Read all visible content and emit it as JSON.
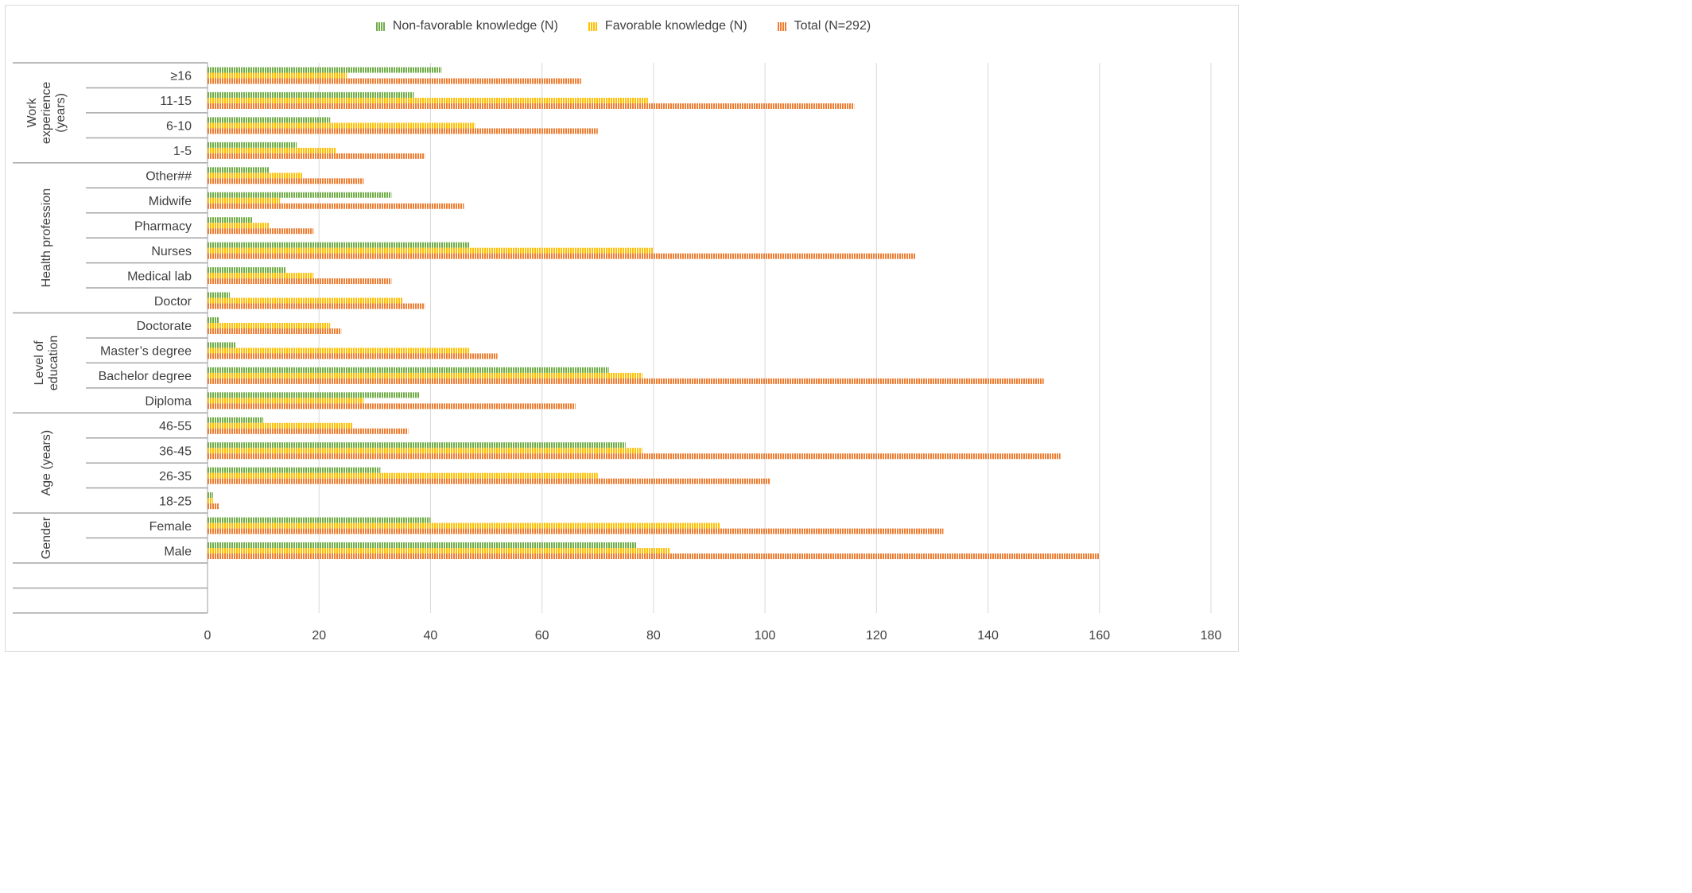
{
  "chart_data": {
    "type": "bar",
    "orientation": "horizontal",
    "series": [
      {
        "name": "Non-favorable knowledge (N)",
        "color": "#70ad47",
        "values": [
          42,
          37,
          22,
          16,
          11,
          33,
          8,
          47,
          14,
          4,
          2,
          5,
          72,
          38,
          10,
          75,
          31,
          1,
          40,
          77
        ]
      },
      {
        "name": "Favorable knowledge (N)",
        "color": "#ffc000",
        "values": [
          25,
          79,
          48,
          23,
          17,
          13,
          11,
          80,
          19,
          35,
          22,
          47,
          78,
          28,
          26,
          78,
          70,
          1,
          92,
          83
        ]
      },
      {
        "name": "Total (N=292)",
        "color": "#ed7d31",
        "values": [
          67,
          116,
          70,
          39,
          28,
          46,
          19,
          127,
          33,
          39,
          24,
          52,
          150,
          66,
          36,
          153,
          101,
          2,
          132,
          160
        ]
      }
    ],
    "categories": [
      "≥16",
      "11-15",
      "6-10",
      "1-5",
      "Other##",
      "Midwife",
      "Pharmacy",
      "Nurses",
      "Medical lab",
      "Doctor",
      "Doctorate",
      "Master’s degree",
      "Bachelor degree",
      "Diploma",
      "46-55",
      "36-45",
      "26-35",
      "18-25",
      "Female",
      "Male"
    ],
    "groups": [
      {
        "lines": [
          "Work",
          "experience",
          "(years)"
        ],
        "count": 4
      },
      {
        "lines": [
          "Health profession"
        ],
        "count": 6
      },
      {
        "lines": [
          "Level of",
          "education"
        ],
        "count": 4
      },
      {
        "lines": [
          "Age (years)"
        ],
        "count": 4
      },
      {
        "lines": [
          "Gender"
        ],
        "count": 2
      }
    ],
    "empty_rows": 2,
    "xlim": [
      0,
      180
    ],
    "xticks": [
      0,
      20,
      40,
      60,
      80,
      100,
      120,
      140,
      160,
      180
    ],
    "grid": true,
    "legend_position": "top-center"
  }
}
